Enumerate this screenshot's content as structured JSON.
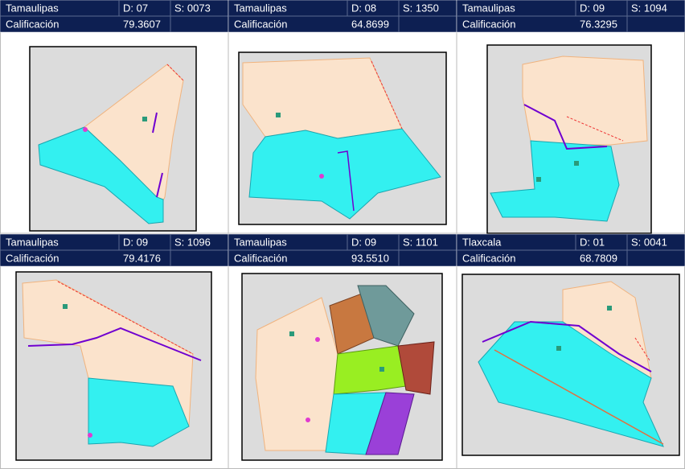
{
  "panels": [
    {
      "state": "Tamaulipas",
      "district": "D: 07",
      "section": "S: 0073",
      "label": "Calificación",
      "score": "79.3607"
    },
    {
      "state": "Tamaulipas",
      "district": "D: 08",
      "section": "S: 1350",
      "label": "Calificación",
      "score": "64.8699"
    },
    {
      "state": "Tamaulipas",
      "district": "D: 09",
      "section": "S: 1094",
      "label": "Calificación",
      "score": "76.3295"
    },
    {
      "state": "Tamaulipas",
      "district": "D: 09",
      "section": "S: 1096",
      "label": "Calificación",
      "score": "79.4176"
    },
    {
      "state": "Tamaulipas",
      "district": "D: 09",
      "section": "S: 1101",
      "label": "Calificación",
      "score": "93.5510"
    },
    {
      "state": "Tlaxcala",
      "district": "D: 01",
      "section": "S: 0041",
      "label": "Calificación",
      "score": "68.7809"
    }
  ]
}
